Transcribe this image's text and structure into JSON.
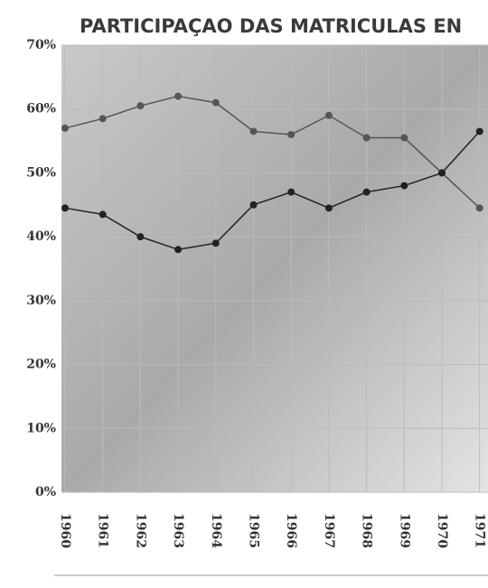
{
  "chart_data": {
    "type": "line",
    "title": "PARTICIPAÇAO DAS MATRICULAS EN",
    "categories": [
      "1960",
      "1961",
      "1962",
      "1963",
      "1964",
      "1965",
      "1966",
      "1967",
      "1968",
      "1969",
      "1970",
      "1971"
    ],
    "series": [
      {
        "color": "#555555",
        "values": [
          57,
          58.5,
          60.5,
          62,
          61,
          56.5,
          56,
          59,
          55.5,
          55.5,
          50,
          44.5
        ]
      },
      {
        "color": "#222222",
        "values": [
          44.5,
          43.5,
          40,
          38,
          39,
          45,
          47,
          44.5,
          47,
          48,
          50,
          56.5
        ]
      }
    ],
    "ylim": [
      0,
      70
    ],
    "yticks": [
      {
        "value": 0,
        "label": "0%"
      },
      {
        "value": 10,
        "label": "10%"
      },
      {
        "value": 20,
        "label": "20%"
      },
      {
        "value": 30,
        "label": "30%"
      },
      {
        "value": 40,
        "label": "40%"
      },
      {
        "value": 50,
        "label": "50%"
      },
      {
        "value": 60,
        "label": "60%"
      },
      {
        "value": 70,
        "label": "70%"
      }
    ],
    "grid": true
  }
}
